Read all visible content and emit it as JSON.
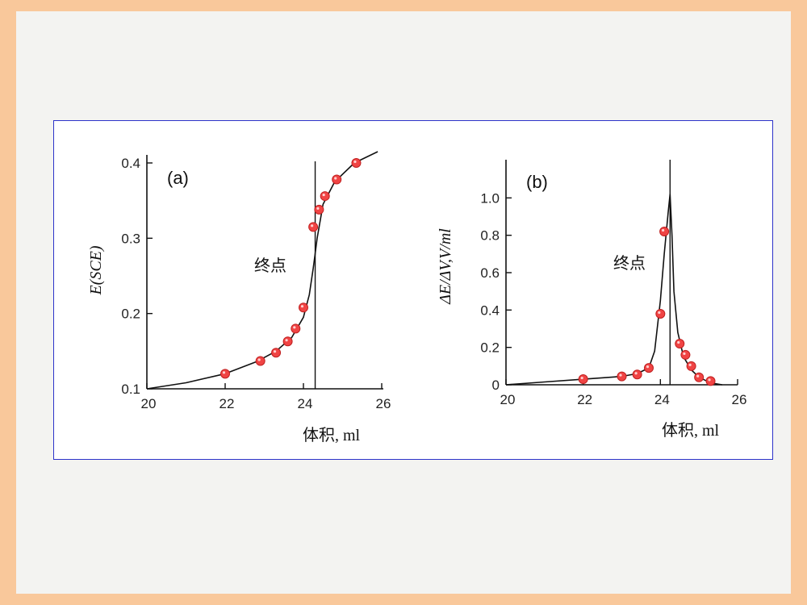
{
  "chart_data": [
    {
      "type": "scatter",
      "panel_label": "(a)",
      "ylabel": "E(SCE)",
      "xlabel": "体积, ml",
      "annotation": "终点",
      "xlim": [
        20,
        26
      ],
      "ylim": [
        0.1,
        0.4
      ],
      "x_ticks": [
        "20",
        "22",
        "24",
        "26"
      ],
      "y_ticks": [
        "0.1",
        "0.2",
        "0.3",
        "0.4"
      ],
      "endpoint_x": 24.3,
      "curve": {
        "x": [
          20,
          21,
          22,
          22.8,
          23.3,
          23.7,
          24.0,
          24.15,
          24.25,
          24.3,
          24.35,
          24.5,
          24.8,
          25.3,
          25.9
        ],
        "y": [
          0.1,
          0.108,
          0.12,
          0.136,
          0.15,
          0.168,
          0.195,
          0.225,
          0.26,
          0.28,
          0.3,
          0.345,
          0.375,
          0.4,
          0.415
        ]
      },
      "points": {
        "x": [
          22.0,
          22.9,
          23.3,
          23.6,
          23.8,
          24.0,
          24.25,
          24.4,
          24.55,
          24.85,
          25.35
        ],
        "y": [
          0.12,
          0.137,
          0.148,
          0.163,
          0.18,
          0.208,
          0.315,
          0.338,
          0.356,
          0.378,
          0.4
        ]
      },
      "colors": {
        "marker": "#f04444",
        "curve": "#111111"
      }
    },
    {
      "type": "scatter",
      "panel_label": "(b)",
      "ylabel": "ΔE/ΔV,V/ml",
      "xlabel": "体积, ml",
      "annotation": "终点",
      "xlim": [
        20,
        26
      ],
      "ylim": [
        0,
        1.2
      ],
      "x_ticks": [
        "20",
        "22",
        "24",
        "26"
      ],
      "y_ticks": [
        "0",
        "0.2",
        "0.4",
        "0.6",
        "0.8",
        "1.0"
      ],
      "endpoint_x": 24.25,
      "curve": {
        "x": [
          20,
          21,
          22,
          23,
          23.4,
          23.7,
          23.85,
          24.0,
          24.1,
          24.2,
          24.25,
          24.3,
          24.35,
          24.45,
          24.6,
          24.8,
          25.0,
          25.3,
          25.6
        ],
        "y": [
          0.0,
          0.015,
          0.03,
          0.045,
          0.06,
          0.09,
          0.18,
          0.45,
          0.7,
          0.92,
          1.02,
          0.8,
          0.5,
          0.28,
          0.15,
          0.08,
          0.04,
          0.01,
          0.0
        ]
      },
      "points": {
        "x": [
          22.0,
          23.0,
          23.4,
          23.7,
          24.0,
          24.1,
          24.5,
          24.65,
          24.8,
          25.0,
          25.3
        ],
        "y": [
          0.03,
          0.045,
          0.055,
          0.09,
          0.38,
          0.82,
          0.22,
          0.16,
          0.1,
          0.04,
          0.02
        ]
      },
      "colors": {
        "marker": "#f04444",
        "curve": "#111111"
      }
    }
  ]
}
